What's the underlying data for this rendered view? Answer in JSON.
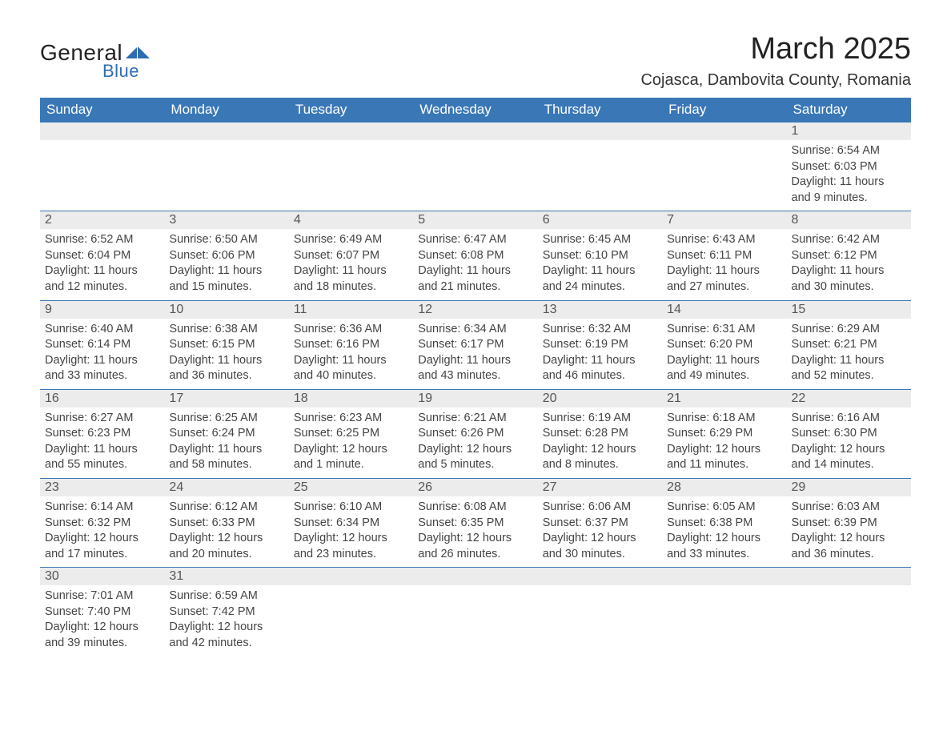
{
  "logo": {
    "text_general": "General",
    "text_blue": "Blue",
    "tri_color": "#2f6db2"
  },
  "title": "March 2025",
  "location": "Cojasca, Dambovita County, Romania",
  "colors": {
    "header_bg": "#3a77b7",
    "header_text": "#ffffff",
    "daynum_bg": "#ececec",
    "daynum_text": "#555555",
    "body_text": "#444444",
    "row_border": "#3a77b7"
  },
  "typography": {
    "title_fontsize": 38,
    "location_fontsize": 20,
    "dow_fontsize": 17,
    "daynum_fontsize": 16,
    "body_fontsize": 14.5
  },
  "days_of_week": [
    "Sunday",
    "Monday",
    "Tuesday",
    "Wednesday",
    "Thursday",
    "Friday",
    "Saturday"
  ],
  "weeks": [
    [
      {
        "blank": true
      },
      {
        "blank": true
      },
      {
        "blank": true
      },
      {
        "blank": true
      },
      {
        "blank": true
      },
      {
        "blank": true
      },
      {
        "num": "1",
        "sunrise": "Sunrise: 6:54 AM",
        "sunset": "Sunset: 6:03 PM",
        "day1": "Daylight: 11 hours",
        "day2": "and 9 minutes."
      }
    ],
    [
      {
        "num": "2",
        "sunrise": "Sunrise: 6:52 AM",
        "sunset": "Sunset: 6:04 PM",
        "day1": "Daylight: 11 hours",
        "day2": "and 12 minutes."
      },
      {
        "num": "3",
        "sunrise": "Sunrise: 6:50 AM",
        "sunset": "Sunset: 6:06 PM",
        "day1": "Daylight: 11 hours",
        "day2": "and 15 minutes."
      },
      {
        "num": "4",
        "sunrise": "Sunrise: 6:49 AM",
        "sunset": "Sunset: 6:07 PM",
        "day1": "Daylight: 11 hours",
        "day2": "and 18 minutes."
      },
      {
        "num": "5",
        "sunrise": "Sunrise: 6:47 AM",
        "sunset": "Sunset: 6:08 PM",
        "day1": "Daylight: 11 hours",
        "day2": "and 21 minutes."
      },
      {
        "num": "6",
        "sunrise": "Sunrise: 6:45 AM",
        "sunset": "Sunset: 6:10 PM",
        "day1": "Daylight: 11 hours",
        "day2": "and 24 minutes."
      },
      {
        "num": "7",
        "sunrise": "Sunrise: 6:43 AM",
        "sunset": "Sunset: 6:11 PM",
        "day1": "Daylight: 11 hours",
        "day2": "and 27 minutes."
      },
      {
        "num": "8",
        "sunrise": "Sunrise: 6:42 AM",
        "sunset": "Sunset: 6:12 PM",
        "day1": "Daylight: 11 hours",
        "day2": "and 30 minutes."
      }
    ],
    [
      {
        "num": "9",
        "sunrise": "Sunrise: 6:40 AM",
        "sunset": "Sunset: 6:14 PM",
        "day1": "Daylight: 11 hours",
        "day2": "and 33 minutes."
      },
      {
        "num": "10",
        "sunrise": "Sunrise: 6:38 AM",
        "sunset": "Sunset: 6:15 PM",
        "day1": "Daylight: 11 hours",
        "day2": "and 36 minutes."
      },
      {
        "num": "11",
        "sunrise": "Sunrise: 6:36 AM",
        "sunset": "Sunset: 6:16 PM",
        "day1": "Daylight: 11 hours",
        "day2": "and 40 minutes."
      },
      {
        "num": "12",
        "sunrise": "Sunrise: 6:34 AM",
        "sunset": "Sunset: 6:17 PM",
        "day1": "Daylight: 11 hours",
        "day2": "and 43 minutes."
      },
      {
        "num": "13",
        "sunrise": "Sunrise: 6:32 AM",
        "sunset": "Sunset: 6:19 PM",
        "day1": "Daylight: 11 hours",
        "day2": "and 46 minutes."
      },
      {
        "num": "14",
        "sunrise": "Sunrise: 6:31 AM",
        "sunset": "Sunset: 6:20 PM",
        "day1": "Daylight: 11 hours",
        "day2": "and 49 minutes."
      },
      {
        "num": "15",
        "sunrise": "Sunrise: 6:29 AM",
        "sunset": "Sunset: 6:21 PM",
        "day1": "Daylight: 11 hours",
        "day2": "and 52 minutes."
      }
    ],
    [
      {
        "num": "16",
        "sunrise": "Sunrise: 6:27 AM",
        "sunset": "Sunset: 6:23 PM",
        "day1": "Daylight: 11 hours",
        "day2": "and 55 minutes."
      },
      {
        "num": "17",
        "sunrise": "Sunrise: 6:25 AM",
        "sunset": "Sunset: 6:24 PM",
        "day1": "Daylight: 11 hours",
        "day2": "and 58 minutes."
      },
      {
        "num": "18",
        "sunrise": "Sunrise: 6:23 AM",
        "sunset": "Sunset: 6:25 PM",
        "day1": "Daylight: 12 hours",
        "day2": "and 1 minute."
      },
      {
        "num": "19",
        "sunrise": "Sunrise: 6:21 AM",
        "sunset": "Sunset: 6:26 PM",
        "day1": "Daylight: 12 hours",
        "day2": "and 5 minutes."
      },
      {
        "num": "20",
        "sunrise": "Sunrise: 6:19 AM",
        "sunset": "Sunset: 6:28 PM",
        "day1": "Daylight: 12 hours",
        "day2": "and 8 minutes."
      },
      {
        "num": "21",
        "sunrise": "Sunrise: 6:18 AM",
        "sunset": "Sunset: 6:29 PM",
        "day1": "Daylight: 12 hours",
        "day2": "and 11 minutes."
      },
      {
        "num": "22",
        "sunrise": "Sunrise: 6:16 AM",
        "sunset": "Sunset: 6:30 PM",
        "day1": "Daylight: 12 hours",
        "day2": "and 14 minutes."
      }
    ],
    [
      {
        "num": "23",
        "sunrise": "Sunrise: 6:14 AM",
        "sunset": "Sunset: 6:32 PM",
        "day1": "Daylight: 12 hours",
        "day2": "and 17 minutes."
      },
      {
        "num": "24",
        "sunrise": "Sunrise: 6:12 AM",
        "sunset": "Sunset: 6:33 PM",
        "day1": "Daylight: 12 hours",
        "day2": "and 20 minutes."
      },
      {
        "num": "25",
        "sunrise": "Sunrise: 6:10 AM",
        "sunset": "Sunset: 6:34 PM",
        "day1": "Daylight: 12 hours",
        "day2": "and 23 minutes."
      },
      {
        "num": "26",
        "sunrise": "Sunrise: 6:08 AM",
        "sunset": "Sunset: 6:35 PM",
        "day1": "Daylight: 12 hours",
        "day2": "and 26 minutes."
      },
      {
        "num": "27",
        "sunrise": "Sunrise: 6:06 AM",
        "sunset": "Sunset: 6:37 PM",
        "day1": "Daylight: 12 hours",
        "day2": "and 30 minutes."
      },
      {
        "num": "28",
        "sunrise": "Sunrise: 6:05 AM",
        "sunset": "Sunset: 6:38 PM",
        "day1": "Daylight: 12 hours",
        "day2": "and 33 minutes."
      },
      {
        "num": "29",
        "sunrise": "Sunrise: 6:03 AM",
        "sunset": "Sunset: 6:39 PM",
        "day1": "Daylight: 12 hours",
        "day2": "and 36 minutes."
      }
    ],
    [
      {
        "num": "30",
        "sunrise": "Sunrise: 7:01 AM",
        "sunset": "Sunset: 7:40 PM",
        "day1": "Daylight: 12 hours",
        "day2": "and 39 minutes."
      },
      {
        "num": "31",
        "sunrise": "Sunrise: 6:59 AM",
        "sunset": "Sunset: 7:42 PM",
        "day1": "Daylight: 12 hours",
        "day2": "and 42 minutes."
      },
      {
        "blank": true
      },
      {
        "blank": true
      },
      {
        "blank": true
      },
      {
        "blank": true
      },
      {
        "blank": true
      }
    ]
  ]
}
